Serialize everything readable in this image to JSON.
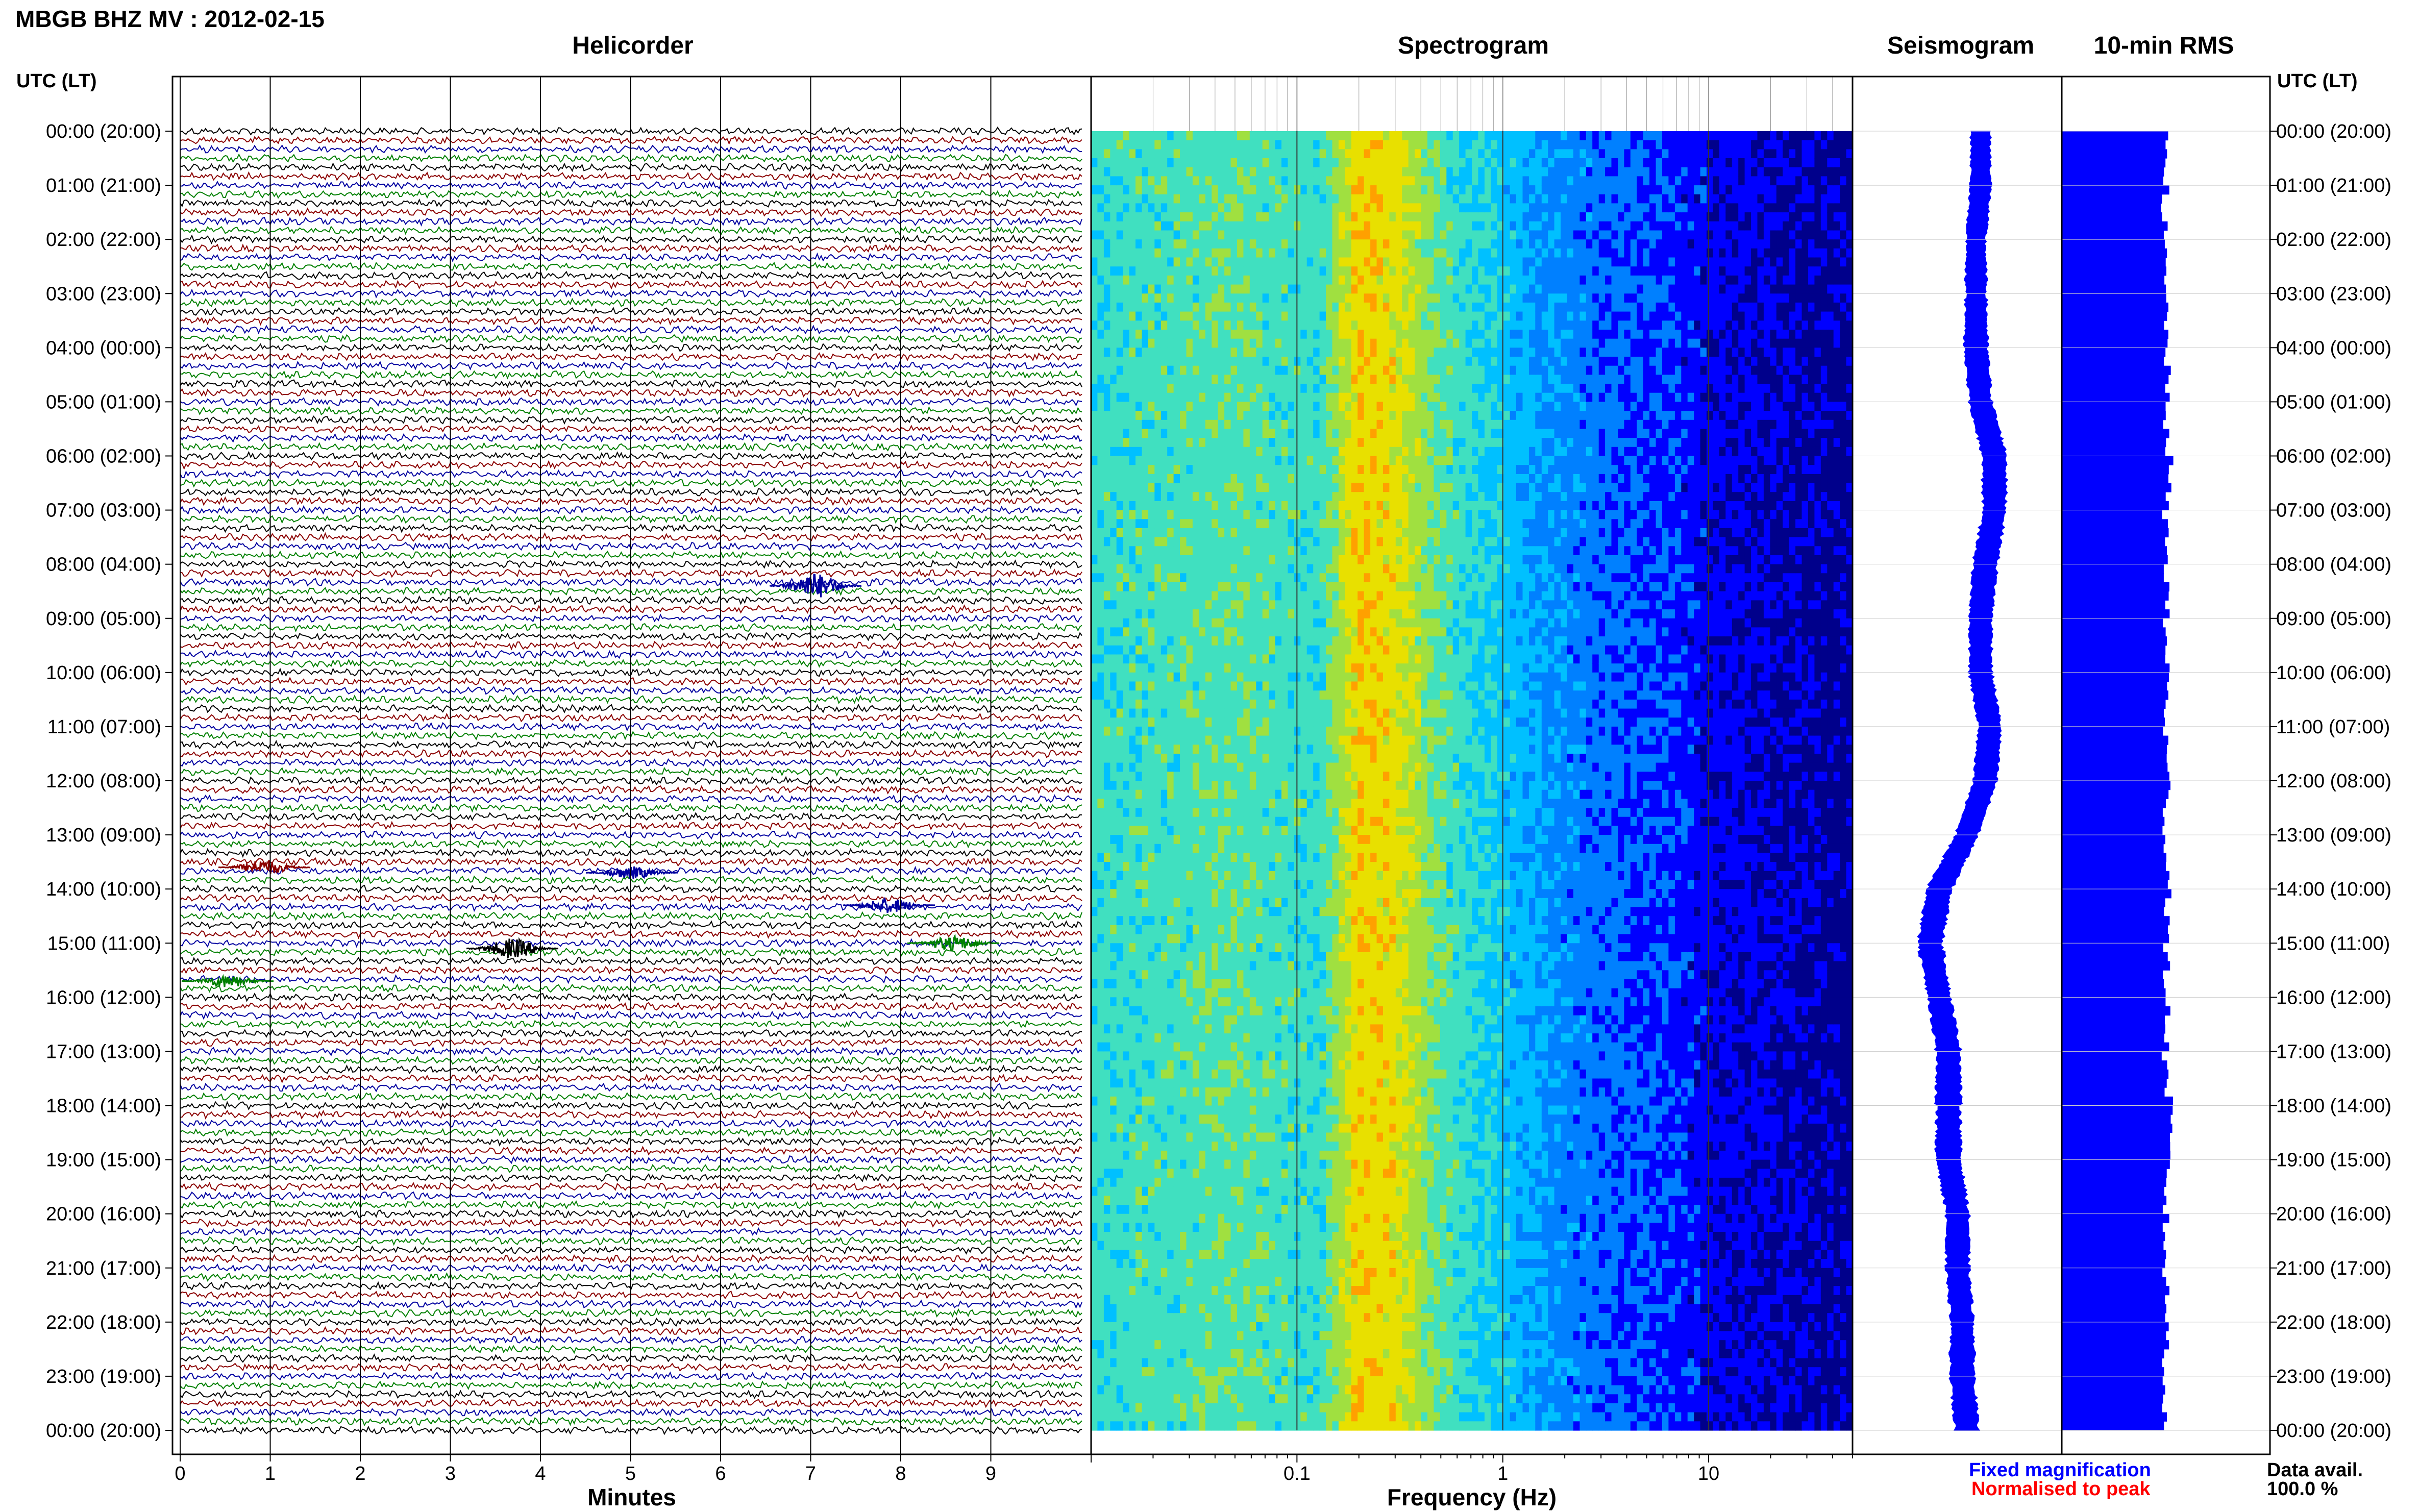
{
  "station_title": "MBGB BHZ MV : 2012-02-15",
  "panels": {
    "helicorder": "Helicorder",
    "spectrogram": "Spectrogram",
    "seismogram": "Seismogram",
    "rms": "10-min RMS"
  },
  "time_axis": {
    "header": "UTC (LT)",
    "labels": [
      "00:00 (20:00)",
      "01:00 (21:00)",
      "02:00 (22:00)",
      "03:00 (23:00)",
      "04:00 (00:00)",
      "05:00 (01:00)",
      "06:00 (02:00)",
      "07:00 (03:00)",
      "08:00 (04:00)",
      "09:00 (05:00)",
      "10:00 (06:00)",
      "11:00 (07:00)",
      "12:00 (08:00)",
      "13:00 (09:00)",
      "14:00 (10:00)",
      "15:00 (11:00)",
      "16:00 (12:00)",
      "17:00 (13:00)",
      "18:00 (14:00)",
      "19:00 (15:00)",
      "20:00 (16:00)",
      "21:00 (17:00)",
      "22:00 (18:00)",
      "23:00 (19:00)",
      "00:00 (20:00)"
    ]
  },
  "legend": {
    "fixed": "Fixed magnification",
    "normalised": "Normalised to peak",
    "fixed_color": "#0000ff",
    "normalised_color": "#ff0000"
  },
  "data_avail": {
    "label": "Data avail.",
    "value": "100.0 %"
  },
  "chart_data": [
    {
      "type": "line",
      "panel": "helicorder",
      "xlabel": "Minutes",
      "x_ticks": [
        "0",
        "1",
        "2",
        "3",
        "4",
        "5",
        "6",
        "7",
        "8",
        "9"
      ],
      "xlim": [
        0,
        10
      ],
      "trace_colors": [
        "#000000",
        "#8b0000",
        "#0000a0",
        "#008000"
      ],
      "lines_per_hour": 6,
      "hours": 24,
      "events": [
        {
          "hour": 8.4,
          "minute": 7.0,
          "color": "#0000a0",
          "amp": 5
        },
        {
          "hour": 13.6,
          "minute": 1.0,
          "color": "#8b0000",
          "amp": 3
        },
        {
          "hour": 13.7,
          "minute": 5.0,
          "color": "#0000a0",
          "amp": 2.5
        },
        {
          "hour": 14.3,
          "minute": 7.8,
          "color": "#0000a0",
          "amp": 3
        },
        {
          "hour": 15.1,
          "minute": 3.7,
          "color": "#000000",
          "amp": 4
        },
        {
          "hour": 15.0,
          "minute": 8.5,
          "color": "#008000",
          "amp": 3
        },
        {
          "hour": 15.7,
          "minute": 0.6,
          "color": "#008000",
          "amp": 2.5
        }
      ]
    },
    {
      "type": "heatmap",
      "panel": "spectrogram",
      "xlabel": "Frequency (Hz)",
      "x_scale": "log",
      "xlim": [
        0.01,
        50
      ],
      "x_ticks": [
        "0.1",
        "1",
        "10"
      ],
      "colormap": [
        "#00008b",
        "#0000ff",
        "#0080ff",
        "#00c0ff",
        "#40e0c0",
        "#a0e040",
        "#e8e000",
        "#ffa000"
      ],
      "dominant_band_hz": [
        0.15,
        0.4
      ],
      "spectral_level_by_freq": [
        [
          0.01,
          0.55
        ],
        [
          0.05,
          0.6
        ],
        [
          0.13,
          0.55
        ],
        [
          0.2,
          0.9
        ],
        [
          0.3,
          0.85
        ],
        [
          0.5,
          0.6
        ],
        [
          1.0,
          0.45
        ],
        [
          2.0,
          0.3
        ],
        [
          5.0,
          0.22
        ],
        [
          10.0,
          0.12
        ],
        [
          50.0,
          0.02
        ]
      ]
    },
    {
      "type": "line",
      "panel": "seismogram",
      "color": "#0000ff",
      "hourly_offset": [
        0.2,
        0.2,
        0.15,
        0.15,
        0.15,
        0.2,
        0.35,
        0.35,
        0.25,
        0.2,
        0.2,
        0.3,
        0.25,
        0.05,
        -0.25,
        -0.35,
        -0.25,
        -0.15,
        -0.15,
        -0.15,
        -0.05,
        -0.05,
        0.0,
        0.0,
        0.05
      ],
      "hourly_amplitude": [
        0.1,
        0.11,
        0.1,
        0.11,
        0.12,
        0.12,
        0.13,
        0.12,
        0.13,
        0.12,
        0.12,
        0.12,
        0.12,
        0.12,
        0.13,
        0.13,
        0.12,
        0.13,
        0.13,
        0.13,
        0.12,
        0.12,
        0.12,
        0.13,
        0.12
      ]
    },
    {
      "type": "bar",
      "panel": "rms",
      "orientation": "horizontal",
      "color": "#0000ff",
      "bins_per_hour": 6,
      "hourly_rms": [
        1.05,
        1.0,
        0.98,
        1.0,
        1.02,
        1.0,
        1.04,
        1.0,
        1.02,
        1.0,
        1.02,
        1.0,
        1.02,
        1.0,
        1.04,
        1.0,
        1.02,
        1.0,
        1.04,
        1.02,
        1.0,
        1.0,
        1.02,
        1.0,
        1.0
      ]
    }
  ]
}
